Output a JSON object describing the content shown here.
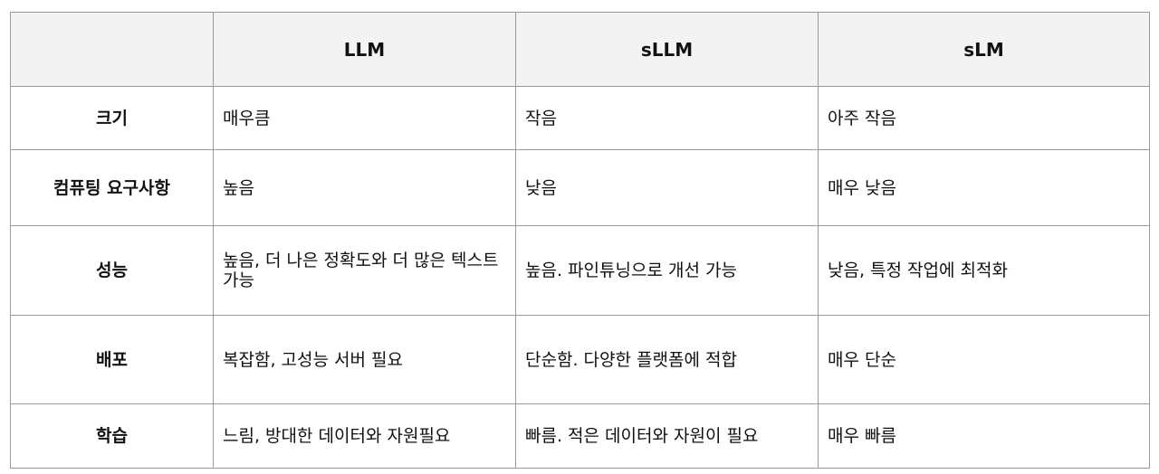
{
  "table": {
    "columns": [
      "",
      "LLM",
      "sLLM",
      "sLM"
    ],
    "rows": [
      {
        "label": "크기",
        "cells": [
          "매우큼",
          "작음",
          "아주 작음"
        ]
      },
      {
        "label": "컴퓨팅 요구사항",
        "cells": [
          "높음",
          "낮음",
          "매우 낮음"
        ]
      },
      {
        "label": "성능",
        "cells": [
          "높음, 더 나은 정확도와 더 많은 텍스트 가능",
          "높음. 파인튜닝으로 개선 가능",
          "낮음, 특정 작업에 최적화"
        ]
      },
      {
        "label": "배포",
        "cells": [
          "복잡함, 고성능 서버 필요",
          "단순함. 다양한 플랫폼에 적합",
          "매우 단순"
        ]
      },
      {
        "label": "학습",
        "cells": [
          "느림, 방대한 데이터와 자원필요",
          "빠름. 적은 데이터와 자원이 필요",
          "매우 빠름"
        ]
      }
    ]
  }
}
